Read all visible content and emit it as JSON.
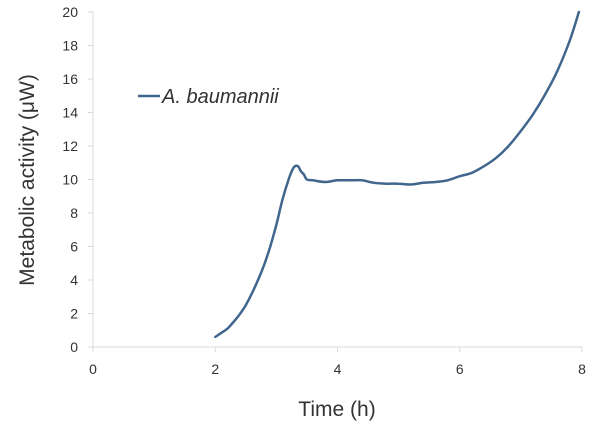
{
  "chart_data": {
    "type": "line",
    "title": "",
    "xlabel": "Time (h)",
    "ylabel": "Metabolic activity (μW)",
    "xlim": [
      0,
      8
    ],
    "ylim": [
      0,
      20
    ],
    "xticks": [
      0,
      2,
      4,
      6,
      8
    ],
    "yticks": [
      0,
      2,
      4,
      6,
      8,
      10,
      12,
      14,
      16,
      18,
      20
    ],
    "grid": false,
    "legend": "upper-left",
    "series": [
      {
        "name": "A. baumannii",
        "color": "#41668e",
        "x": [
          2.0,
          2.1,
          2.2,
          2.3,
          2.4,
          2.5,
          2.6,
          2.7,
          2.8,
          2.9,
          3.0,
          3.1,
          3.2,
          3.28,
          3.35,
          3.4,
          3.45,
          3.5,
          3.6,
          3.8,
          4.0,
          4.2,
          4.4,
          4.6,
          4.8,
          5.0,
          5.2,
          5.4,
          5.6,
          5.8,
          6.0,
          6.2,
          6.4,
          6.6,
          6.8,
          7.0,
          7.2,
          7.4,
          7.6,
          7.8,
          7.95
        ],
        "y": [
          0.6,
          0.85,
          1.1,
          1.5,
          1.95,
          2.5,
          3.2,
          4.0,
          4.9,
          6.0,
          7.3,
          8.8,
          10.0,
          10.7,
          10.8,
          10.5,
          10.3,
          10.0,
          9.95,
          9.85,
          9.95,
          9.95,
          9.95,
          9.8,
          9.75,
          9.75,
          9.7,
          9.8,
          9.85,
          9.95,
          10.2,
          10.4,
          10.8,
          11.3,
          12.0,
          12.9,
          13.9,
          15.1,
          16.5,
          18.3,
          20.0
        ]
      }
    ]
  }
}
